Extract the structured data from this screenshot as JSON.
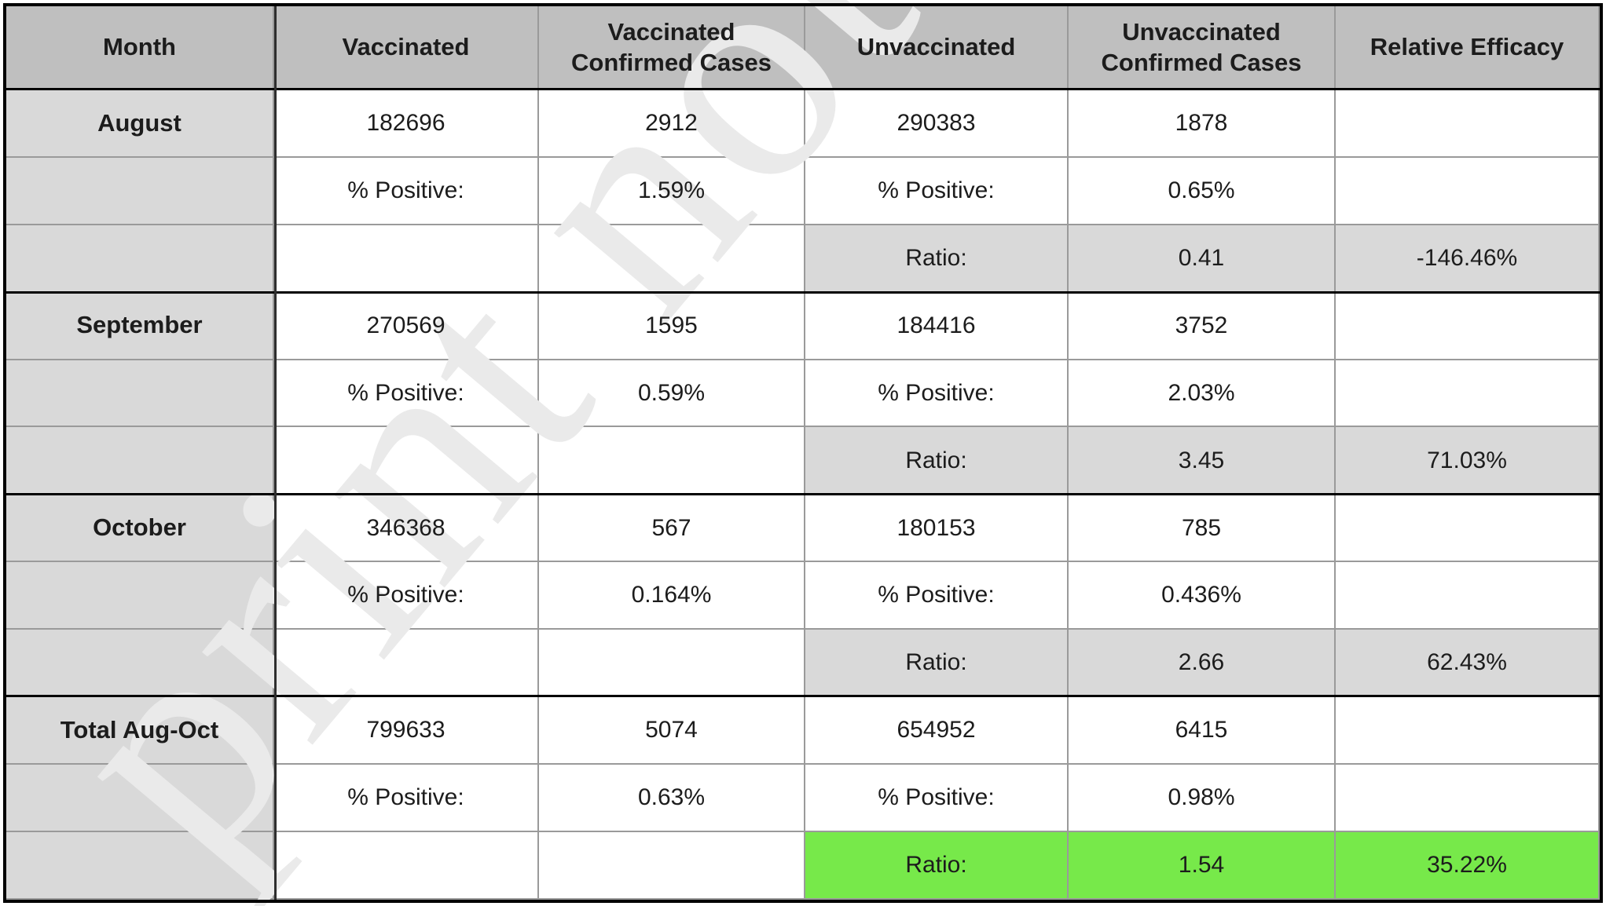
{
  "watermark": {
    "text": "print not p"
  },
  "colors": {
    "header_bg": "#bfbfbf",
    "label_bg": "#d9d9d9",
    "ratio_bg": "#d9d9d9",
    "highlight_green": "#77e94a",
    "grid_line": "#9a9a9a",
    "border_dark": "#000000",
    "month_divider": "#2e2e2e",
    "text": "#1c1c1c",
    "watermark": "#eaeaea"
  },
  "table": {
    "columns": [
      "Month",
      "Vaccinated",
      "Vaccinated Confirmed Cases",
      "Unvaccinated",
      "Unvaccinated Confirmed Cases",
      "Relative Efficacy"
    ],
    "groups": [
      {
        "month": "August",
        "vaccinated": "182696",
        "vaccinated_cases": "2912",
        "unvaccinated": "290383",
        "unvaccinated_cases": "1878",
        "pct_label": "% Positive:",
        "vaccinated_pct": "1.59%",
        "unvaccinated_pct": "0.65%",
        "ratio_label": "Ratio:",
        "ratio": "0.41",
        "relative_efficacy": "-146.46%"
      },
      {
        "month": "September",
        "vaccinated": "270569",
        "vaccinated_cases": "1595",
        "unvaccinated": "184416",
        "unvaccinated_cases": "3752",
        "pct_label": "% Positive:",
        "vaccinated_pct": "0.59%",
        "unvaccinated_pct": "2.03%",
        "ratio_label": "Ratio:",
        "ratio": "3.45",
        "relative_efficacy": "71.03%"
      },
      {
        "month": "October",
        "vaccinated": "346368",
        "vaccinated_cases": "567",
        "unvaccinated": "180153",
        "unvaccinated_cases": "785",
        "pct_label": "% Positive:",
        "vaccinated_pct": "0.164%",
        "unvaccinated_pct": "0.436%",
        "ratio_label": "Ratio:",
        "ratio": "2.66",
        "relative_efficacy": "62.43%"
      },
      {
        "month": "Total Aug-Oct",
        "vaccinated": "799633",
        "vaccinated_cases": "5074",
        "unvaccinated": "654952",
        "unvaccinated_cases": "6415",
        "pct_label": "% Positive:",
        "vaccinated_pct": "0.63%",
        "unvaccinated_pct": "0.98%",
        "ratio_label": "Ratio:",
        "ratio": "1.54",
        "relative_efficacy": "35.22%"
      }
    ]
  }
}
